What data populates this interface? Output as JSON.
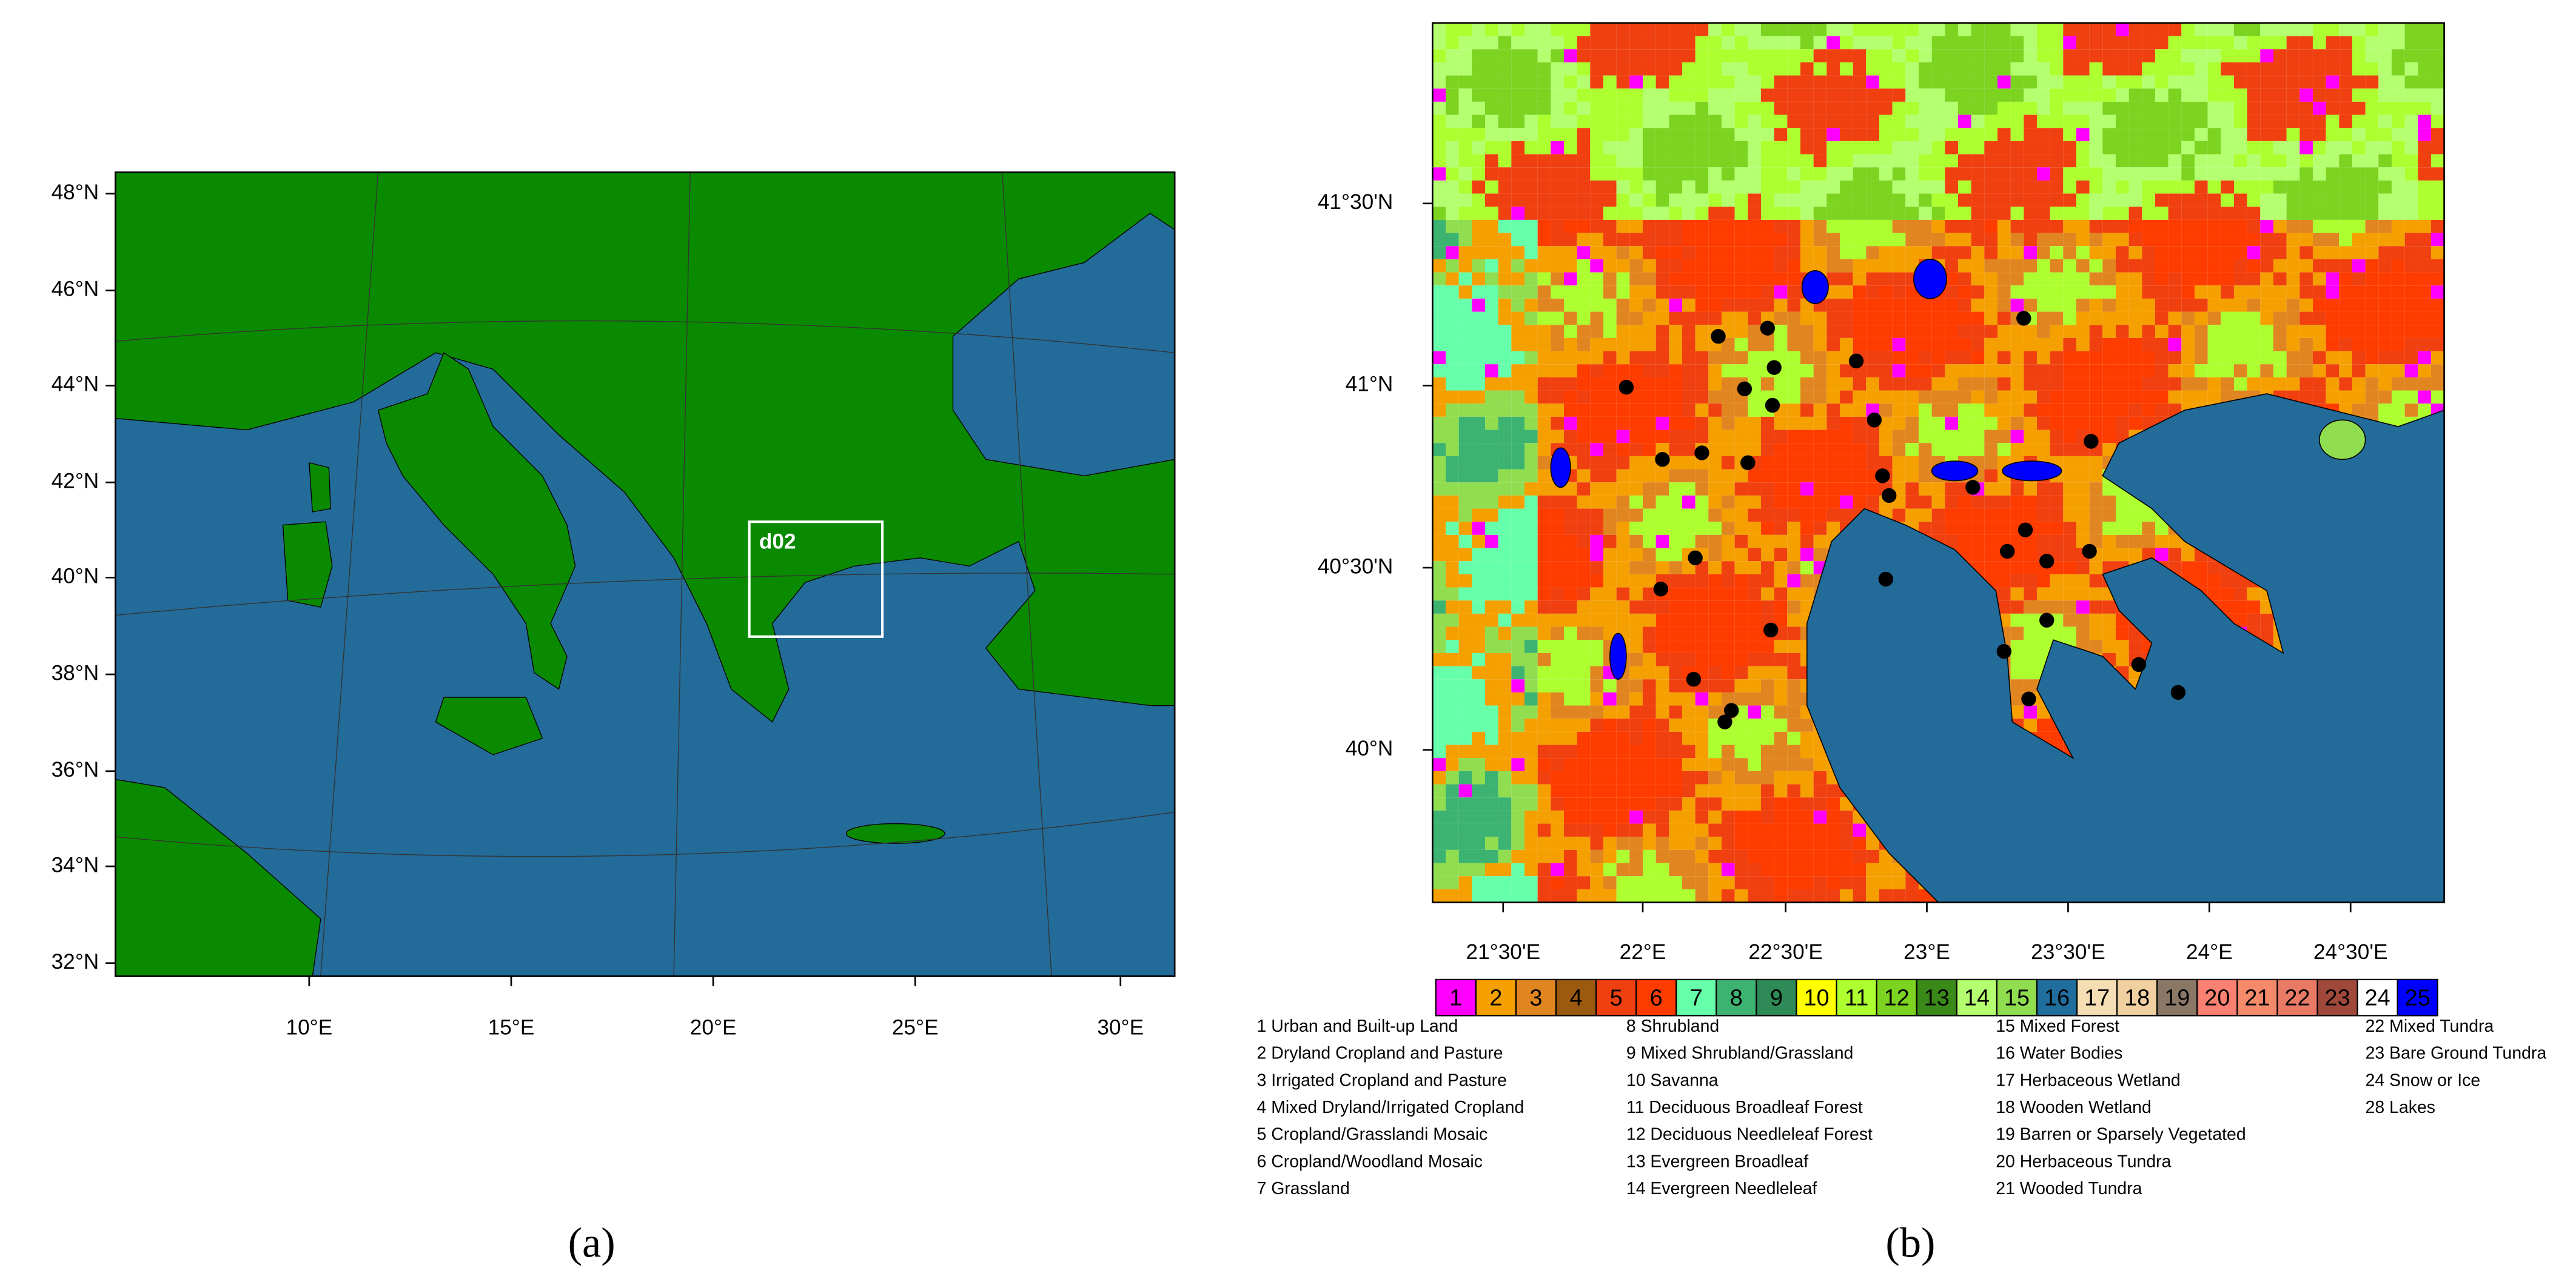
{
  "panel_a": {
    "label": "(a)",
    "box_label": "d02",
    "lat_ticks": [
      "48°N",
      "46°N",
      "44°N",
      "42°N",
      "40°N",
      "38°N",
      "36°N",
      "34°N",
      "32°N"
    ],
    "lon_ticks": [
      "10°E",
      "15°E",
      "20°E",
      "25°E",
      "30°E"
    ]
  },
  "panel_b": {
    "label": "(b)",
    "lat_ticks": [
      "41°30'N",
      "41°N",
      "40°30'N",
      "40°N"
    ],
    "lon_ticks": [
      "21°30'E",
      "22°E",
      "22°30'E",
      "23°E",
      "23°30'E",
      "24°E",
      "24°30'E"
    ],
    "colorbar": [
      {
        "label": "1",
        "color": "#ff00ff"
      },
      {
        "label": "2",
        "color": "#f5a000"
      },
      {
        "label": "3",
        "color": "#e08520"
      },
      {
        "label": "4",
        "color": "#9c5a10"
      },
      {
        "label": "5",
        "color": "#f04010"
      },
      {
        "label": "6",
        "color": "#ff3c00"
      },
      {
        "label": "7",
        "color": "#66ffaa"
      },
      {
        "label": "8",
        "color": "#3cb371"
      },
      {
        "label": "9",
        "color": "#2e8b57"
      },
      {
        "label": "10",
        "color": "#ffff00"
      },
      {
        "label": "11",
        "color": "#adff2f"
      },
      {
        "label": "12",
        "color": "#7cd320"
      },
      {
        "label": "13",
        "color": "#3a8a1a"
      },
      {
        "label": "14",
        "color": "#b4ff70"
      },
      {
        "label": "15",
        "color": "#90dd50"
      },
      {
        "label": "16",
        "color": "#1f6e9e"
      },
      {
        "label": "17",
        "color": "#f5deb3"
      },
      {
        "label": "18",
        "color": "#f0d0a0"
      },
      {
        "label": "19",
        "color": "#8b7765"
      },
      {
        "label": "20",
        "color": "#fa8072"
      },
      {
        "label": "21",
        "color": "#f58a6a"
      },
      {
        "label": "22",
        "color": "#e87a66"
      },
      {
        "label": "23",
        "color": "#a0483a"
      },
      {
        "label": "24",
        "color": "#ffffff"
      },
      {
        "label": "25",
        "color": "#0000ff"
      }
    ],
    "legend": [
      [
        "1 Urban and Built-up Land",
        "2 Dryland Cropland and Pasture",
        "3 Irrigated Cropland and Pasture",
        "4 Mixed Dryland/Irrigated Cropland",
        "5 Cropland/Grasslandi Mosaic",
        "6 Cropland/Woodland Mosaic",
        "7 Grassland"
      ],
      [
        "8 Shrubland",
        "9 Mixed Shrubland/Grassland",
        "10 Savanna",
        "11 Deciduous Broadleaf Forest",
        "12 Deciduous Needleleaf Forest",
        "13 Evergreen Broadleaf",
        "14 Evergreen Needleleaf"
      ],
      [
        "15 Mixed Forest",
        "16 Water Bodies",
        "17 Herbaceous Wetland",
        "18 Wooden Wetland",
        "19 Barren or Sparsely Vegetated",
        "20 Herbaceous Tundra",
        "21 Wooded Tundra"
      ],
      [
        "22 Mixed Tundra",
        "23 Bare Ground Tundra",
        "24 Snow or Ice",
        "28 Lakes"
      ]
    ]
  }
}
